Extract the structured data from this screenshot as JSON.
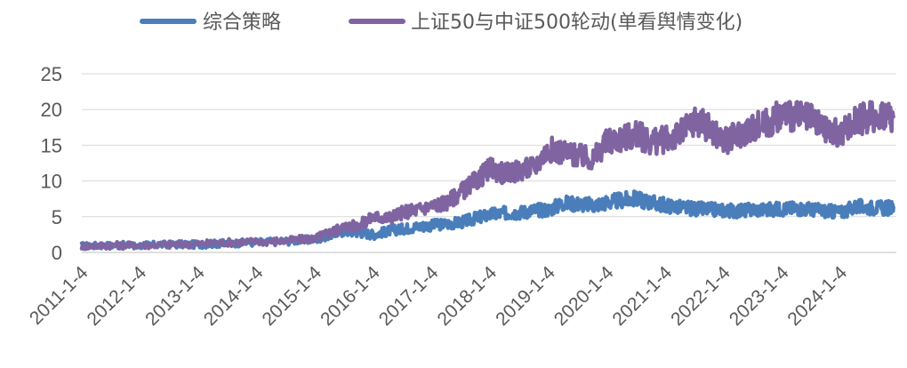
{
  "chart_data": {
    "type": "line",
    "title": "",
    "xlabel": "",
    "ylabel": "",
    "ylim": [
      0,
      25
    ],
    "yticks": [
      0,
      5,
      10,
      15,
      20,
      25
    ],
    "grid": "horizontal",
    "legend_position": "top",
    "x_tick_labels": [
      "2011-1-4",
      "2012-1-4",
      "2013-1-4",
      "2014-1-4",
      "2015-1-4",
      "2016-1-4",
      "2017-1-4",
      "2018-1-4",
      "2019-1-4",
      "2020-1-4",
      "2021-1-4",
      "2022-1-4",
      "2023-1-4",
      "2024-1-4"
    ],
    "x": [
      2011.0,
      2011.5,
      2012.0,
      2012.5,
      2013.0,
      2013.5,
      2014.0,
      2014.5,
      2015.0,
      2015.25,
      2015.5,
      2015.75,
      2016.0,
      2016.25,
      2016.5,
      2016.75,
      2017.0,
      2017.25,
      2017.5,
      2017.75,
      2018.0,
      2018.25,
      2018.5,
      2018.75,
      2019.0,
      2019.25,
      2019.5,
      2019.75,
      2020.0,
      2020.25,
      2020.5,
      2020.75,
      2021.0,
      2021.25,
      2021.5,
      2021.75,
      2022.0,
      2022.25,
      2022.5,
      2022.75,
      2023.0,
      2023.25,
      2023.5,
      2023.75,
      2024.0,
      2024.25,
      2024.5,
      2024.75,
      2024.9
    ],
    "series": [
      {
        "name": "综合策略",
        "color": "#4a7ebb",
        "values": [
          0.9,
          1.0,
          1.0,
          1.1,
          1.1,
          1.3,
          1.4,
          1.6,
          1.8,
          2.5,
          3.0,
          2.8,
          2.5,
          3.0,
          3.3,
          3.6,
          3.8,
          4.0,
          4.2,
          4.8,
          5.3,
          5.5,
          5.6,
          5.9,
          6.0,
          6.9,
          6.8,
          6.6,
          7.0,
          7.3,
          7.5,
          7.0,
          6.6,
          6.3,
          6.1,
          6.0,
          5.9,
          5.8,
          6.0,
          6.0,
          6.1,
          6.2,
          6.0,
          5.8,
          5.6,
          6.4,
          6.3,
          6.2,
          6.3
        ]
      },
      {
        "name": "上证50与中证500轮动(单看舆情变化)",
        "color": "#8064a2",
        "values": [
          0.9,
          1.0,
          1.0,
          1.1,
          1.2,
          1.4,
          1.5,
          1.6,
          2.0,
          2.8,
          3.6,
          3.8,
          5.0,
          4.8,
          5.6,
          6.0,
          6.5,
          7.0,
          8.5,
          10.0,
          11.8,
          11.0,
          11.5,
          12.0,
          14.5,
          14.0,
          13.5,
          13.0,
          15.5,
          16.0,
          16.5,
          15.5,
          15.8,
          16.5,
          18.5,
          17.5,
          15.5,
          16.5,
          17.5,
          18.0,
          19.5,
          19.0,
          18.5,
          17.0,
          16.5,
          18.5,
          19.0,
          19.5,
          19.0
        ]
      }
    ]
  }
}
